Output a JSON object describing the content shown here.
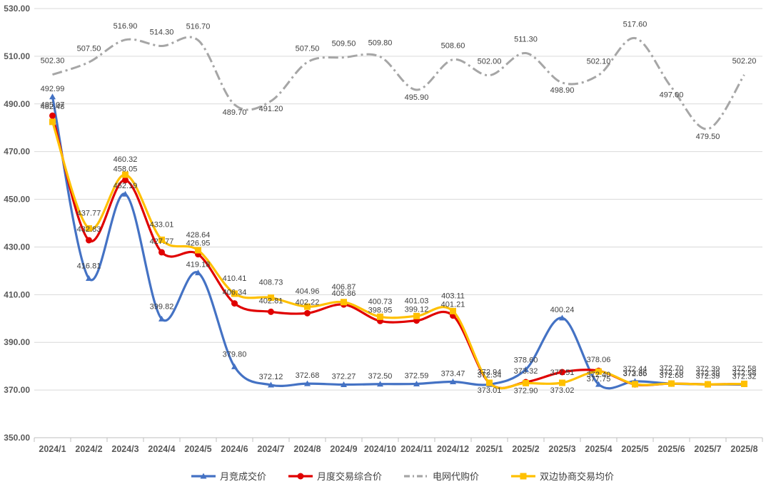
{
  "chart_data": {
    "type": "line",
    "x": [
      "2024/1",
      "2024/2",
      "2024/3",
      "2024/4",
      "2024/5",
      "2024/6",
      "2024/7",
      "2024/8",
      "2024/9",
      "2024/10",
      "2024/11",
      "2024/12",
      "2025/1",
      "2025/2",
      "2025/3",
      "2025/4",
      "2025/5",
      "2025/6",
      "2025/7",
      "2025/8"
    ],
    "ylim": [
      350,
      530
    ],
    "yticks": [
      350,
      370,
      390,
      410,
      430,
      450,
      470,
      490,
      510,
      530
    ],
    "ytick_labels": [
      "350.00",
      "370.00",
      "390.00",
      "410.00",
      "430.00",
      "450.00",
      "470.00",
      "490.00",
      "510.00",
      "530.00"
    ],
    "grid": true,
    "legend_position": "bottom",
    "series": [
      {
        "name": "月竞成交价",
        "color": "#4472c4",
        "marker": "triangle",
        "values": [
          492.99,
          416.81,
          452.19,
          399.82,
          419.18,
          379.8,
          372.12,
          372.68,
          372.27,
          372.5,
          372.59,
          373.47,
          372.34,
          378.6,
          400.24,
          372.4,
          373.66,
          372.68,
          372.39,
          372.32
        ],
        "labels": [
          "492.99",
          "416.81",
          "452.19",
          "399.82",
          "419.18",
          "379.80",
          "372.12",
          "372.68",
          "372.27",
          "372.50",
          "372.59",
          "373.47",
          "372.34",
          "378.60",
          "400.24",
          "372.40",
          "373.66",
          "372.68",
          "372.39",
          "372.32"
        ]
      },
      {
        "name": "月度交易综合价",
        "color": "#e00000",
        "marker": "circle",
        "values": [
          485.07,
          432.83,
          458.05,
          427.77,
          426.95,
          406.34,
          402.81,
          402.22,
          405.86,
          398.95,
          399.12,
          401.21,
          372.94,
          373.32,
          377.51,
          378.06,
          372.35,
          372.7,
          372.39,
          372.58
        ],
        "labels": [
          "485.07",
          "432.83",
          "458.05",
          "427.77",
          "426.95",
          "406.34",
          "402.81",
          "402.22",
          "405.86",
          "398.95",
          "399.12",
          "401.21",
          "372.94",
          "373.32",
          "377.51",
          "378.06",
          "372.35",
          "372.70",
          "372.39",
          "372.58"
        ]
      },
      {
        "name": "电网代购价",
        "color": "#a6a6a6",
        "marker": "none",
        "dashed": true,
        "values": [
          502.3,
          507.5,
          516.9,
          514.3,
          516.7,
          489.7,
          491.2,
          507.5,
          509.5,
          509.8,
          495.9,
          508.6,
          502.0,
          511.3,
          498.9,
          502.1,
          517.6,
          497.0,
          479.5,
          502.2
        ],
        "labels": [
          "502.30",
          "507.50",
          "516.90",
          "514.30",
          "516.70",
          "489.70",
          "491.20",
          "507.50",
          "509.50",
          "509.80",
          "495.90",
          "508.60",
          "502.00",
          "511.30",
          "498.90",
          "502.10",
          "517.60",
          "497.00",
          "479.50",
          "502.20"
        ]
      },
      {
        "name": "双边协商交易均价",
        "color": "#ffc000",
        "marker": "square",
        "values": [
          482.48,
          437.77,
          460.32,
          433.01,
          428.64,
          410.41,
          408.73,
          404.96,
          406.87,
          400.73,
          401.03,
          403.11,
          373.01,
          372.9,
          373.02,
          377.75,
          372.44,
          372.7,
          372.39,
          372.58
        ],
        "labels": [
          "482.48",
          "437.77",
          "460.32",
          "433.01",
          "428.64",
          "410.41",
          "408.73",
          "404.96",
          "406.87",
          "400.73",
          "401.03",
          "403.11",
          "373.01",
          "372.90",
          "373.02",
          "377.75",
          "372.44",
          "372.70",
          "372.39",
          "372.58"
        ]
      }
    ]
  }
}
